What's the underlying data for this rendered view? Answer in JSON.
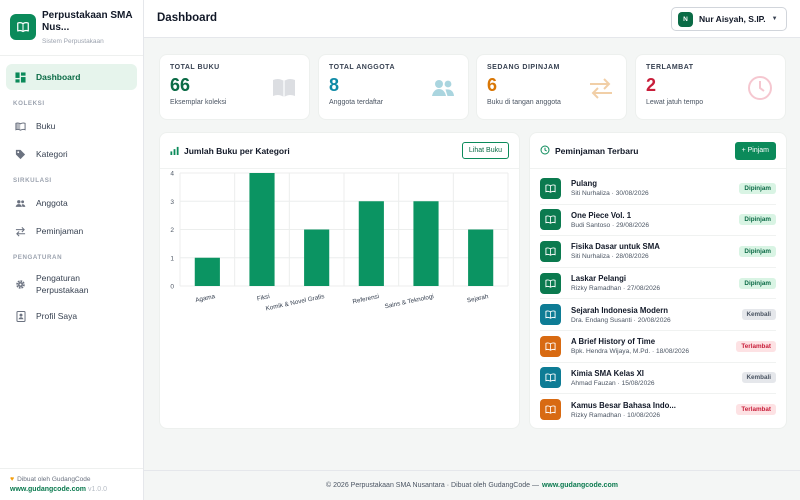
{
  "brand": {
    "title": "Perpustakaan SMA Nus...",
    "subtitle": "Sistem Perpustakaan"
  },
  "sidebar": {
    "dashboard": "Dashboard",
    "section_koleksi": "KOLEKSI",
    "buku": "Buku",
    "kategori": "Kategori",
    "section_sirkulasi": "SIRKULASI",
    "anggota": "Anggota",
    "peminjaman": "Peminjaman",
    "section_pengaturan": "PENGATURAN",
    "pengaturan_perpustakaan": "Pengaturan Perpustakaan",
    "profil": "Profil Saya",
    "footer_made": "Dibuat oleh GudangCode",
    "footer_link": "www.gudangcode.com",
    "footer_version": "v1.0.0"
  },
  "header": {
    "title": "Dashboard",
    "user_initial": "N",
    "user_name": "Nur Aisyah, S.IP."
  },
  "stats": [
    {
      "label": "TOTAL BUKU",
      "value": "66",
      "sub": "Eksemplar koleksi",
      "color": "#0b6b46",
      "icon": "book-icon"
    },
    {
      "label": "TOTAL ANGGOTA",
      "value": "8",
      "sub": "Anggota terdaftar",
      "color": "#0e8aa6",
      "icon": "users-icon"
    },
    {
      "label": "SEDANG DIPINJAM",
      "value": "6",
      "sub": "Buku di tangan anggota",
      "color": "#d97706",
      "icon": "exchange-icon"
    },
    {
      "label": "TERLAMBAT",
      "value": "2",
      "sub": "Lewat jatuh tempo",
      "color": "#c81e3a",
      "icon": "clock-icon"
    }
  ],
  "chart_card": {
    "title": "Jumlah Buku per Kategori",
    "button": "Lihat Buku"
  },
  "chart_data": {
    "type": "bar",
    "title": "Jumlah Buku per Kategori",
    "categories": [
      "Agama",
      "Fiksi",
      "Komik & Novel Grafis",
      "Referensi",
      "Sains & Teknologi",
      "Sejarah"
    ],
    "values": [
      1,
      4,
      2,
      3,
      3,
      2
    ],
    "ylim": [
      0,
      4
    ],
    "yticks": [
      0,
      1,
      2,
      3,
      4
    ],
    "grid": true,
    "color": "#0b9462"
  },
  "loans_card": {
    "title": "Peminjaman Terbaru",
    "button": "+ Pinjam"
  },
  "loans": [
    {
      "title": "Pulang",
      "meta": "Siti Nurhaliza · 30/08/2026",
      "status": "Dipinjam",
      "kind": "green"
    },
    {
      "title": "One Piece Vol. 1",
      "meta": "Budi Santoso · 29/08/2026",
      "status": "Dipinjam",
      "kind": "green"
    },
    {
      "title": "Fisika Dasar untuk SMA",
      "meta": "Siti Nurhaliza · 28/08/2026",
      "status": "Dipinjam",
      "kind": "green"
    },
    {
      "title": "Laskar Pelangi",
      "meta": "Rizky Ramadhan · 27/08/2026",
      "status": "Dipinjam",
      "kind": "green"
    },
    {
      "title": "Sejarah Indonesia Modern",
      "meta": "Dra. Endang Susanti · 20/08/2026",
      "status": "Kembali",
      "kind": "teal"
    },
    {
      "title": "A Brief History of Time",
      "meta": "Bpk. Hendra Wijaya, M.Pd. · 18/08/2026",
      "status": "Terlambat",
      "kind": "orange"
    },
    {
      "title": "Kimia SMA Kelas XI",
      "meta": "Ahmad Fauzan · 15/08/2026",
      "status": "Kembali",
      "kind": "teal"
    },
    {
      "title": "Kamus Besar Bahasa Indo...",
      "meta": "Rizky Ramadhan · 10/08/2026",
      "status": "Terlambat",
      "kind": "orange"
    }
  ],
  "footer": {
    "text": "© 2026 Perpustakaan SMA Nusantara · Dibuat oleh GudangCode —",
    "site": "www.gudangcode.com"
  }
}
